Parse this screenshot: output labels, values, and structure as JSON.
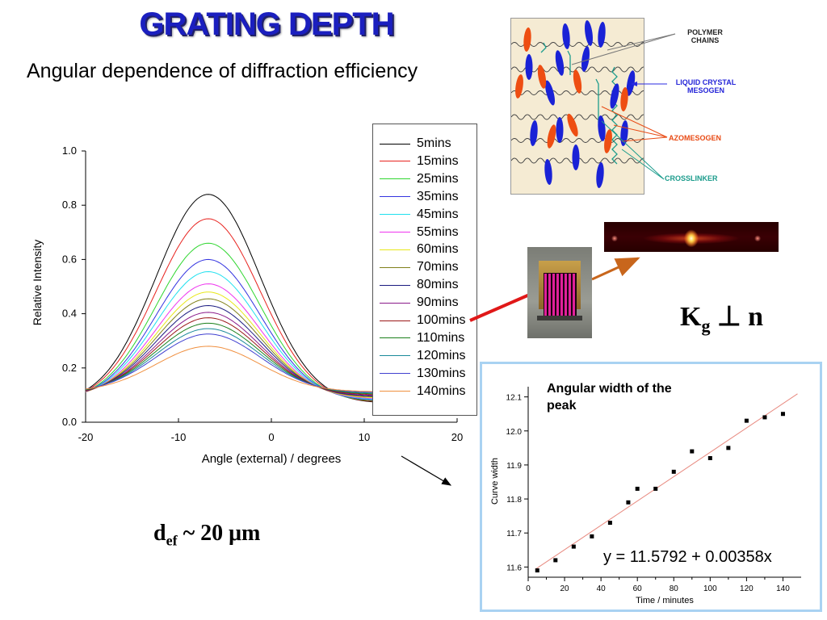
{
  "slide": {
    "title": "GRATING DEPTH",
    "subtitle": "Angular dependence of diffraction efficiency",
    "kg_symbol": "K",
    "kg_subscript": "g",
    "kg_rest": " ⊥ n",
    "def_symbol": "d",
    "def_subscript": "ef",
    "def_rest": " ~ 20 μm",
    "inset_title": "Angular width of the peak",
    "inset_equation": "y = 11.5792 + 0.00358x"
  },
  "diagram": {
    "labels": {
      "polymer": "POLYMER CHAINS",
      "liquid_crystal": "LIQUID CRYSTAL MESOGEN",
      "azomesogen": "AZOMESOGEN",
      "crosslinker": "CROSSLINKER"
    },
    "colors": {
      "mesogen": "#1a22d6",
      "azomesogen": "#ee4e12",
      "crosslinker": "#1c9c8c",
      "polymer": "#444444"
    }
  },
  "chart_data": [
    {
      "type": "line",
      "xlabel": "Angle (external) / degrees",
      "ylabel": "Relative Intensity",
      "xlim": [
        -20,
        20
      ],
      "ylim": [
        0,
        1.0
      ],
      "xticks": [
        -20,
        -10,
        0,
        10,
        20
      ],
      "yticks": [
        0.0,
        0.2,
        0.4,
        0.6,
        0.8,
        1.0
      ],
      "legend_position": "top-right",
      "curve_model": "baseline + (peak - baseline) * exp(-(angle - center)^2 / (2 * sigma^2))",
      "center": -6.8,
      "sigma": 5.6,
      "baseline": 0.07,
      "series": [
        {
          "name": "5mins",
          "peak": 0.84,
          "color": "#000000"
        },
        {
          "name": "15mins",
          "peak": 0.75,
          "color": "#e8231f"
        },
        {
          "name": "25mins",
          "peak": 0.66,
          "color": "#2fd62f"
        },
        {
          "name": "35mins",
          "peak": 0.6,
          "color": "#3434e0"
        },
        {
          "name": "45mins",
          "peak": 0.555,
          "color": "#1ee0ee"
        },
        {
          "name": "55mins",
          "peak": 0.51,
          "color": "#ee34ee"
        },
        {
          "name": "60mins",
          "peak": 0.48,
          "color": "#e8e81a"
        },
        {
          "name": "70mins",
          "peak": 0.455,
          "color": "#80801a"
        },
        {
          "name": "80mins",
          "peak": 0.43,
          "color": "#1a1a80"
        },
        {
          "name": "90mins",
          "peak": 0.405,
          "color": "#8a1a8a"
        },
        {
          "name": "100mins",
          "peak": 0.385,
          "color": "#9a1818"
        },
        {
          "name": "110mins",
          "peak": 0.365,
          "color": "#1a801a"
        },
        {
          "name": "120mins",
          "peak": 0.345,
          "color": "#1a8a9a"
        },
        {
          "name": "130mins",
          "peak": 0.325,
          "color": "#4040d0"
        },
        {
          "name": "140mins",
          "peak": 0.28,
          "color": "#f09040"
        }
      ]
    },
    {
      "type": "scatter",
      "title": "Angular width of the peak",
      "xlabel": "Time / minutes",
      "ylabel": "Curve width",
      "xlim": [
        0,
        150
      ],
      "ylim": [
        11.57,
        12.13
      ],
      "xticks": [
        0,
        20,
        40,
        60,
        80,
        100,
        120,
        140
      ],
      "yticks": [
        11.6,
        11.7,
        11.8,
        11.9,
        12.0,
        12.1
      ],
      "points": [
        {
          "x": 5,
          "y": 11.59
        },
        {
          "x": 15,
          "y": 11.62
        },
        {
          "x": 25,
          "y": 11.66
        },
        {
          "x": 35,
          "y": 11.69
        },
        {
          "x": 45,
          "y": 11.73
        },
        {
          "x": 55,
          "y": 11.79
        },
        {
          "x": 60,
          "y": 11.83
        },
        {
          "x": 70,
          "y": 11.83
        },
        {
          "x": 80,
          "y": 11.88
        },
        {
          "x": 90,
          "y": 11.94
        },
        {
          "x": 100,
          "y": 11.92
        },
        {
          "x": 110,
          "y": 11.95
        },
        {
          "x": 120,
          "y": 12.03
        },
        {
          "x": 130,
          "y": 12.04
        },
        {
          "x": 140,
          "y": 12.05
        }
      ],
      "fit": {
        "intercept": 11.5792,
        "slope": 0.00358,
        "color": "#e88a80"
      }
    }
  ]
}
